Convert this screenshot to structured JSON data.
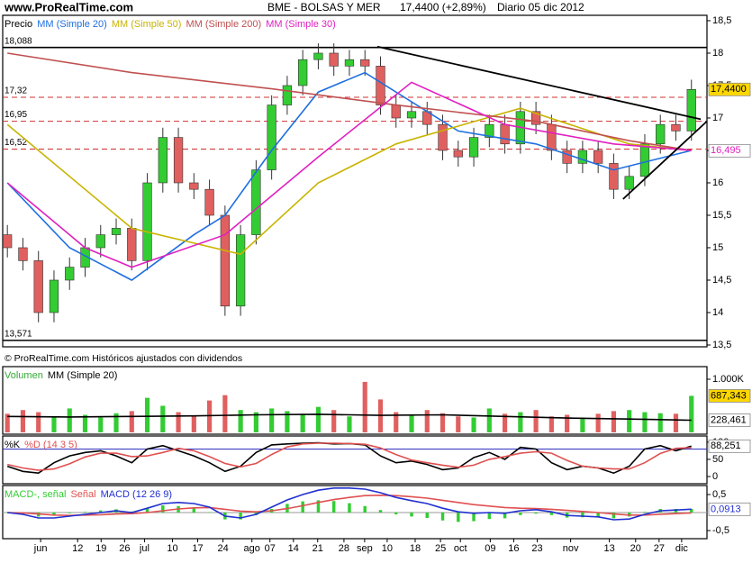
{
  "header": {
    "site": "www.ProRealTime.com",
    "symbol": "BME - BOLSAS Y MER",
    "quote": "17,4400 (+2,89%)",
    "period": "Diario  05 dic 2012"
  },
  "footer_note": "© ProRealTime.com Históricos ajustados con dividendos",
  "chart_data": [
    {
      "type": "candlestick",
      "xlim": [
        -0.3,
        45
      ],
      "xticks": [
        {
          "value": 2.14,
          "label": "jun"
        },
        {
          "value": 4.52,
          "label": "12"
        },
        {
          "value": 6.03,
          "label": "19"
        },
        {
          "value": 7.54,
          "label": "26"
        },
        {
          "value": 8.82,
          "label": "jul"
        },
        {
          "value": 10.62,
          "label": "10"
        },
        {
          "value": 12.24,
          "label": "17"
        },
        {
          "value": 13.87,
          "label": "24"
        },
        {
          "value": 15.73,
          "label": "ago"
        },
        {
          "value": 16.89,
          "label": "07"
        },
        {
          "value": 18.4,
          "label": "14"
        },
        {
          "value": 19.96,
          "label": "21"
        },
        {
          "value": 21.65,
          "label": "28"
        },
        {
          "value": 22.98,
          "label": "sep"
        },
        {
          "value": 24.43,
          "label": "10"
        },
        {
          "value": 26.23,
          "label": "18"
        },
        {
          "value": 27.86,
          "label": "25"
        },
        {
          "value": 29.14,
          "label": "oct"
        },
        {
          "value": 31.06,
          "label": "09"
        },
        {
          "value": 32.57,
          "label": "16"
        },
        {
          "value": 34.08,
          "label": "23"
        },
        {
          "value": 36.23,
          "label": "nov"
        },
        {
          "value": 38.72,
          "label": "13"
        },
        {
          "value": 40.41,
          "label": "20"
        },
        {
          "value": 41.92,
          "label": "27"
        },
        {
          "value": 43.37,
          "label": "dic"
        }
      ],
      "ylim": [
        13.472,
        18.583
      ],
      "yticks": [
        {
          "value": 13.5,
          "label": "13,5"
        },
        14,
        {
          "value": 14.5,
          "label": "14,5"
        },
        15,
        {
          "value": 15.5,
          "label": "15,5"
        },
        16,
        {
          "value": 16.5,
          "label": "16,5"
        },
        17,
        {
          "value": 17.5,
          "label": "17,5"
        },
        18,
        {
          "value": 18.5,
          "label": "18,5"
        }
      ],
      "levels": [
        {
          "value": 18.088,
          "label": "18,088",
          "style": "solid"
        },
        {
          "value": 17.32,
          "label": "17,32",
          "style": "dashed"
        },
        {
          "value": 16.95,
          "label": "16,95",
          "style": "dashed"
        },
        {
          "value": 16.52,
          "label": "16,52",
          "style": "dashed"
        },
        {
          "value": 13.571,
          "label": "13,571",
          "style": "solid"
        }
      ],
      "markers": [
        {
          "value": 17.44,
          "label": "17,4400",
          "background": "#ffd700",
          "text_color": "#000000"
        },
        {
          "value": 16.495,
          "label": "16,495",
          "background": "#ffffff",
          "text_color": "#e020c0"
        }
      ],
      "trendline_color": "#000000",
      "trendlines": [
        {
          "x": [
            23.8,
            44.6
          ],
          "values": [
            18.1,
            16.98
          ]
        },
        {
          "x": [
            39.6,
            45
          ],
          "values": [
            15.75,
            16.95
          ]
        }
      ],
      "series": [
        {
          "name": "Precio",
          "type": "candlestick",
          "color": "#000000",
          "up_color": "#33cc33",
          "down_color": "#e06060",
          "open": [
            15.2,
            15.0,
            14.8,
            14.0,
            14.5,
            14.7,
            15.0,
            15.2,
            15.3,
            14.8,
            16.0,
            16.7,
            16.0,
            15.9,
            15.5,
            14.1,
            15.2,
            16.2,
            17.2,
            17.5,
            17.9,
            18.0,
            17.8,
            17.9,
            17.8,
            17.2,
            17.0,
            17.1,
            16.9,
            16.5,
            16.4,
            16.7,
            16.9,
            16.6,
            17.1,
            16.9,
            16.5,
            16.3,
            16.5,
            16.3,
            15.9,
            16.1,
            16.6,
            16.9,
            16.8
          ],
          "high": [
            15.35,
            15.15,
            14.95,
            14.65,
            14.85,
            15.15,
            15.35,
            15.45,
            15.45,
            16.15,
            16.85,
            16.85,
            16.15,
            16.05,
            15.65,
            15.35,
            16.35,
            17.35,
            17.65,
            18.05,
            18.15,
            18.15,
            18.05,
            18.05,
            17.95,
            17.35,
            17.25,
            17.25,
            17.05,
            16.65,
            16.85,
            17.05,
            17.05,
            17.25,
            17.25,
            17.05,
            16.65,
            16.65,
            16.65,
            16.45,
            16.25,
            16.75,
            17.05,
            17.05,
            17.59
          ],
          "low": [
            14.85,
            14.65,
            13.85,
            13.85,
            14.35,
            14.55,
            14.85,
            15.05,
            14.65,
            14.65,
            15.85,
            15.85,
            15.75,
            15.35,
            13.95,
            13.95,
            15.05,
            16.05,
            17.05,
            17.35,
            17.75,
            17.65,
            17.65,
            17.65,
            17.05,
            16.85,
            16.85,
            16.75,
            16.35,
            16.25,
            16.25,
            16.55,
            16.45,
            16.45,
            16.75,
            16.35,
            16.15,
            16.15,
            16.15,
            15.75,
            15.75,
            15.95,
            16.45,
            16.65,
            16.65
          ],
          "close": [
            15.0,
            14.8,
            14.0,
            14.5,
            14.7,
            15.0,
            15.2,
            15.3,
            14.8,
            16.0,
            16.7,
            16.0,
            15.9,
            15.5,
            14.1,
            15.2,
            16.2,
            17.2,
            17.5,
            17.9,
            18.0,
            17.8,
            17.9,
            17.8,
            17.2,
            17.0,
            17.1,
            16.9,
            16.5,
            16.4,
            16.7,
            16.9,
            16.6,
            17.1,
            16.9,
            16.5,
            16.3,
            16.5,
            16.3,
            15.9,
            16.1,
            16.6,
            16.9,
            16.8,
            17.44
          ]
        },
        {
          "name": "MM (Simple 20)",
          "type": "line",
          "color": "#1e6fe0",
          "x": [
            0,
            4,
            8,
            12,
            14,
            17,
            20,
            23,
            29,
            34,
            39,
            44
          ],
          "values": [
            16.0,
            15.0,
            14.5,
            15.2,
            15.5,
            16.5,
            17.4,
            17.7,
            16.8,
            16.6,
            16.2,
            16.5
          ]
        },
        {
          "name": "MM (Simple 50)",
          "type": "line",
          "color": "#c8b400",
          "x": [
            0,
            8,
            15,
            20,
            25,
            33,
            40,
            44
          ],
          "values": [
            16.9,
            15.3,
            14.9,
            16.0,
            16.6,
            17.15,
            16.6,
            16.5
          ]
        },
        {
          "name": "MM (Simple 200)",
          "type": "line",
          "color": "#c05050",
          "x": [
            0,
            8,
            17,
            25,
            34,
            40,
            44
          ],
          "values": [
            18.0,
            17.7,
            17.45,
            17.2,
            16.95,
            16.65,
            16.5
          ]
        },
        {
          "name": "MM (Simple 30)",
          "type": "line",
          "color": "#e020c0",
          "x": [
            0,
            5,
            8,
            14,
            20,
            26,
            32,
            39,
            44
          ],
          "values": [
            16.0,
            15.0,
            14.7,
            15.2,
            16.4,
            17.55,
            16.9,
            16.6,
            16.5
          ]
        }
      ]
    },
    {
      "type": "bar",
      "ylim": [
        -34,
        1237
      ],
      "yticks": [
        {
          "value": 1000,
          "label": "1.000K"
        }
      ],
      "markers": [
        {
          "value": 687.343,
          "label": "687,343",
          "background": "#ffd700",
          "text_color": "#000000"
        },
        {
          "value": 228.461,
          "label": "228,461",
          "background": "#ffffff",
          "text_color": "#000000"
        }
      ],
      "series": [
        {
          "name": "Volumen",
          "type": "bar",
          "color": "#33aa33",
          "up_color": "#33cc33",
          "down_color": "#e06060",
          "values": [
            350,
            420,
            380,
            300,
            450,
            330,
            280,
            360,
            400,
            650,
            500,
            380,
            320,
            600,
            700,
            420,
            380,
            450,
            400,
            350,
            480,
            420,
            300,
            950,
            620,
            380,
            330,
            420,
            360,
            300,
            280,
            450,
            350,
            380,
            420,
            300,
            330,
            280,
            350,
            400,
            420,
            380,
            360,
            350,
            687.343
          ]
        },
        {
          "name": "MM (Simple 20)",
          "type": "line",
          "color": "#000000",
          "x": [
            0,
            4,
            8,
            12,
            16,
            20,
            24,
            28,
            32,
            36,
            40,
            42,
            44
          ],
          "values": [
            300,
            290,
            300,
            310,
            330,
            340,
            320,
            330,
            300,
            270,
            250,
            240,
            228.461
          ]
        }
      ]
    },
    {
      "type": "line",
      "ylim": [
        -21,
        118
      ],
      "yticks": [
        0,
        50,
        100
      ],
      "hlines": [
        80
      ],
      "hline_color": "#3030c0",
      "markers": [
        {
          "value": 88.251,
          "label": "88,251",
          "background": "#ffffff",
          "text_color": "#000000"
        }
      ],
      "series": [
        {
          "name": "%K",
          "type": "line",
          "color": "#000000",
          "values": [
            30,
            15,
            10,
            40,
            60,
            70,
            75,
            60,
            40,
            80,
            90,
            75,
            60,
            40,
            15,
            30,
            70,
            92,
            95,
            97,
            98,
            95,
            96,
            92,
            60,
            40,
            45,
            35,
            20,
            25,
            55,
            70,
            50,
            85,
            80,
            40,
            20,
            30,
            25,
            10,
            30,
            80,
            90,
            75,
            88.251
          ]
        },
        {
          "name": "%D (14 3 5)",
          "type": "line",
          "color": "#e05050",
          "values": [
            35,
            25,
            18,
            22,
            37,
            57,
            68,
            68,
            58,
            60,
            70,
            82,
            75,
            58,
            38,
            28,
            38,
            64,
            86,
            95,
            97,
            97,
            96,
            94,
            83,
            64,
            48,
            40,
            33,
            27,
            33,
            50,
            58,
            68,
            72,
            68,
            47,
            30,
            25,
            22,
            22,
            40,
            67,
            82,
            84
          ]
        }
      ]
    },
    {
      "type": "line",
      "ylim": [
        -0.725,
        0.75
      ],
      "yticks": [
        {
          "value": 0.5,
          "label": "0,5"
        },
        {
          "value": -0.5,
          "label": "-0,5"
        }
      ],
      "hlines": [
        0
      ],
      "hline_color": "#999999",
      "markers": [
        {
          "value": 0.0913,
          "label": "0,0913",
          "background": "#ffffff",
          "text_color": "#2030d0"
        }
      ],
      "series": [
        {
          "name": "MACD-, señal",
          "type": "bar",
          "color": "#33cc33",
          "values": [
            0,
            -0.04,
            -0.11,
            -0.08,
            -0.02,
            0.02,
            0.06,
            0.09,
            0.03,
            0.12,
            0.2,
            0.18,
            0.12,
            0.01,
            -0.19,
            -0.19,
            -0.07,
            0.1,
            0.24,
            0.31,
            0.34,
            0.32,
            0.26,
            0.18,
            0.07,
            -0.05,
            -0.11,
            -0.15,
            -0.22,
            -0.26,
            -0.24,
            -0.18,
            -0.16,
            -0.07,
            -0.03,
            -0.07,
            -0.14,
            -0.13,
            -0.12,
            -0.16,
            -0.11,
            0.02,
            0.1,
            0.1,
            0.1013
          ]
        },
        {
          "name": "Señal",
          "type": "line",
          "color": "#e05050",
          "values": [
            0,
            -0.01,
            -0.04,
            -0.07,
            -0.08,
            -0.07,
            -0.06,
            -0.04,
            -0.03,
            0.0,
            0.05,
            0.1,
            0.13,
            0.14,
            0.09,
            0.04,
            0.02,
            0.05,
            0.11,
            0.19,
            0.28,
            0.36,
            0.42,
            0.47,
            0.48,
            0.47,
            0.44,
            0.4,
            0.34,
            0.28,
            0.22,
            0.18,
            0.14,
            0.12,
            0.11,
            0.09,
            0.06,
            0.03,
            0.0,
            -0.04,
            -0.07,
            -0.07,
            -0.05,
            -0.03,
            -0.01
          ]
        },
        {
          "name": "MACD (12 26 9)",
          "type": "line",
          "color": "#2030d0",
          "values": [
            0,
            -0.05,
            -0.15,
            -0.15,
            -0.1,
            -0.05,
            0.0,
            0.05,
            0.0,
            0.12,
            0.25,
            0.28,
            0.25,
            0.15,
            -0.1,
            -0.15,
            -0.05,
            0.15,
            0.35,
            0.5,
            0.62,
            0.68,
            0.68,
            0.65,
            0.55,
            0.42,
            0.33,
            0.25,
            0.12,
            0.02,
            -0.02,
            0.0,
            -0.02,
            0.05,
            0.08,
            0.02,
            -0.08,
            -0.1,
            -0.12,
            -0.2,
            -0.18,
            -0.05,
            0.05,
            0.07,
            0.0913
          ]
        }
      ]
    }
  ]
}
